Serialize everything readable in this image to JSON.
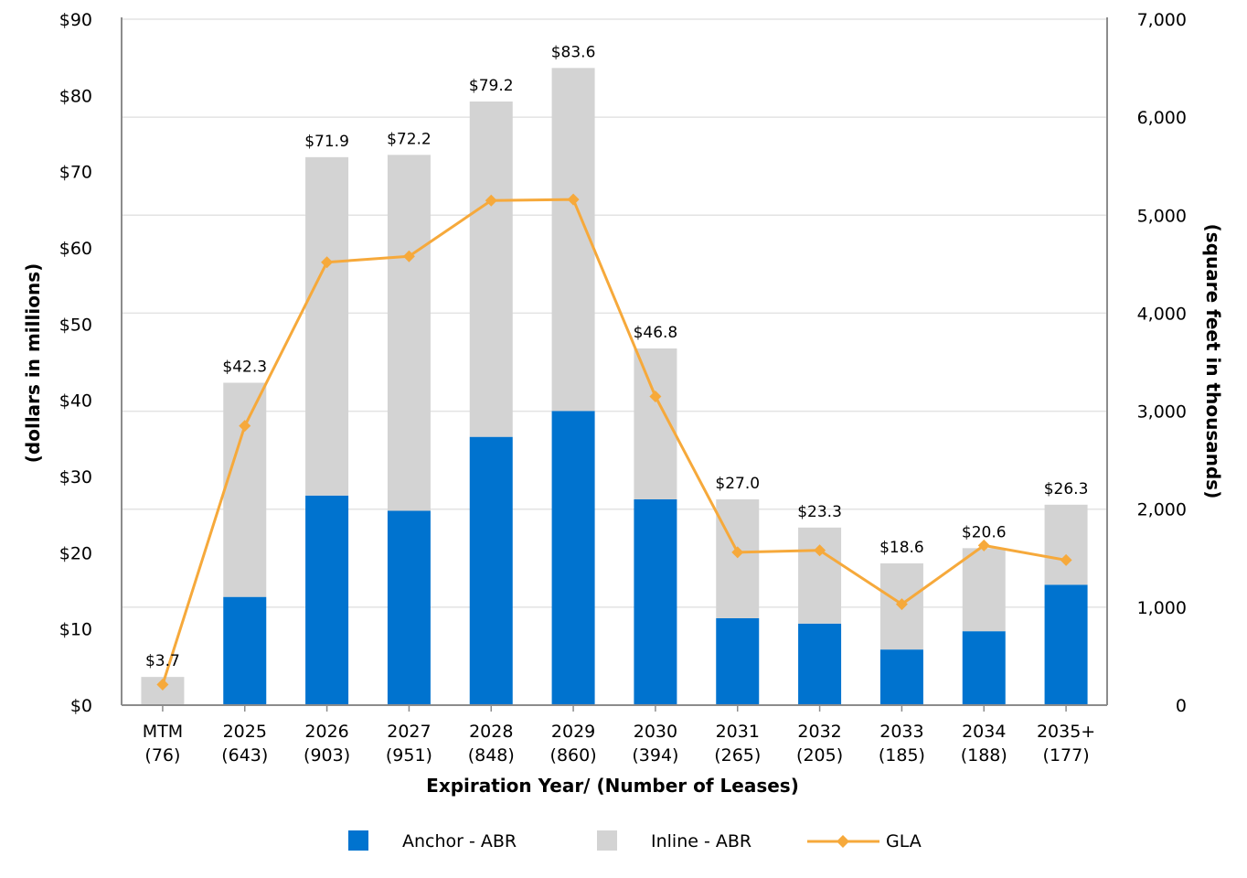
{
  "colors": {
    "anchor": "#0073CF",
    "inline": "#D3D3D3",
    "gla": "#F6A93B",
    "grid": "#E3E3E3",
    "axis": "#8C8C8C"
  },
  "chart_data": {
    "type": "bar",
    "stacked": true,
    "xlabel": "Expiration Year/ (Number of Leases)",
    "ylabel_left": "(dollars in millions)",
    "ylabel_right": "(square feet in thousands)",
    "ylim_left": [
      0,
      90
    ],
    "ylim_right": [
      0,
      7000
    ],
    "yticks_left": [
      "$0",
      "$10",
      "$20",
      "$30",
      "$40",
      "$50",
      "$60",
      "$70",
      "$80",
      "$90"
    ],
    "yticks_right": [
      "0",
      "1,000",
      "2,000",
      "3,000",
      "4,000",
      "5,000",
      "6,000",
      "7,000"
    ],
    "categories": [
      {
        "year": "MTM",
        "leases": "(76)"
      },
      {
        "year": "2025",
        "leases": "(643)"
      },
      {
        "year": "2026",
        "leases": "(903)"
      },
      {
        "year": "2027",
        "leases": "(951)"
      },
      {
        "year": "2028",
        "leases": "(848)"
      },
      {
        "year": "2029",
        "leases": "(860)"
      },
      {
        "year": "2030",
        "leases": "(394)"
      },
      {
        "year": "2031",
        "leases": "(265)"
      },
      {
        "year": "2032",
        "leases": "(205)"
      },
      {
        "year": "2033",
        "leases": "(185)"
      },
      {
        "year": "2034",
        "leases": "(188)"
      },
      {
        "year": "2035+",
        "leases": "(177)"
      }
    ],
    "series": [
      {
        "name": "Anchor - ABR",
        "axis": "left",
        "kind": "bar",
        "values": [
          0,
          14.2,
          27.5,
          25.5,
          35.2,
          38.6,
          27.0,
          11.4,
          10.7,
          7.3,
          9.7,
          15.8
        ]
      },
      {
        "name": "Inline - ABR",
        "axis": "left",
        "kind": "bar",
        "values": [
          3.7,
          28.1,
          44.4,
          46.7,
          44.0,
          45.0,
          19.8,
          15.6,
          12.6,
          11.3,
          10.9,
          10.5
        ]
      },
      {
        "name": "GLA",
        "axis": "right",
        "kind": "line",
        "values": [
          210,
          2850,
          4520,
          4580,
          5150,
          5160,
          3150,
          1560,
          1580,
          1030,
          1630,
          1480
        ]
      }
    ],
    "totals_labels": [
      "$3.7",
      "$42.3",
      "$71.9",
      "$72.2",
      "$79.2",
      "$83.6",
      "$46.8",
      "$27.0",
      "$23.3",
      "$18.6",
      "$20.6",
      "$26.3"
    ],
    "totals": [
      3.7,
      42.3,
      71.9,
      72.2,
      79.2,
      83.6,
      46.8,
      27.0,
      23.3,
      18.6,
      20.6,
      26.3
    ],
    "legend": [
      {
        "label": "Anchor - ABR",
        "type": "square"
      },
      {
        "label": "Inline - ABR",
        "type": "square"
      },
      {
        "label": "GLA",
        "type": "line-marker"
      }
    ]
  }
}
